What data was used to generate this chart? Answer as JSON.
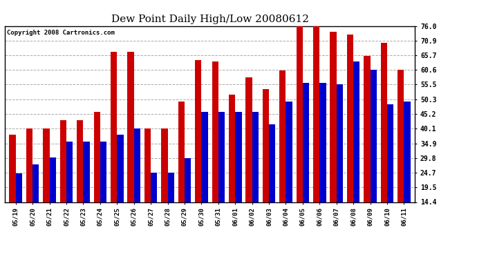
{
  "title": "Dew Point Daily High/Low 20080612",
  "copyright": "Copyright 2008 Cartronics.com",
  "dates": [
    "05/19",
    "05/20",
    "05/21",
    "05/22",
    "05/23",
    "05/24",
    "05/25",
    "05/26",
    "05/27",
    "05/28",
    "05/29",
    "05/30",
    "05/31",
    "06/01",
    "06/02",
    "06/03",
    "06/04",
    "06/05",
    "06/06",
    "06/07",
    "06/08",
    "06/09",
    "06/10",
    "06/11"
  ],
  "highs": [
    38.0,
    40.1,
    40.1,
    43.0,
    43.0,
    46.0,
    67.0,
    67.0,
    40.1,
    40.1,
    49.5,
    64.0,
    63.5,
    52.0,
    58.0,
    54.0,
    60.5,
    76.0,
    76.0,
    74.0,
    73.0,
    65.5,
    70.0,
    60.6
  ],
  "lows": [
    24.5,
    27.5,
    30.0,
    35.5,
    35.5,
    35.5,
    38.0,
    40.1,
    24.7,
    24.7,
    29.8,
    46.0,
    46.0,
    46.0,
    46.0,
    41.5,
    49.5,
    56.0,
    56.0,
    55.5,
    63.5,
    60.6,
    48.5,
    49.5
  ],
  "ylim": [
    14.4,
    76.0
  ],
  "yticks": [
    14.4,
    19.5,
    24.7,
    29.8,
    34.9,
    40.1,
    45.2,
    50.3,
    55.5,
    60.6,
    65.7,
    70.9,
    76.0
  ],
  "bar_color_high": "#cc0000",
  "bar_color_low": "#0000cc",
  "background_color": "#ffffff",
  "plot_bg_color": "#ffffff",
  "grid_color": "#aaaaaa",
  "title_fontsize": 11,
  "copyright_fontsize": 6.5
}
